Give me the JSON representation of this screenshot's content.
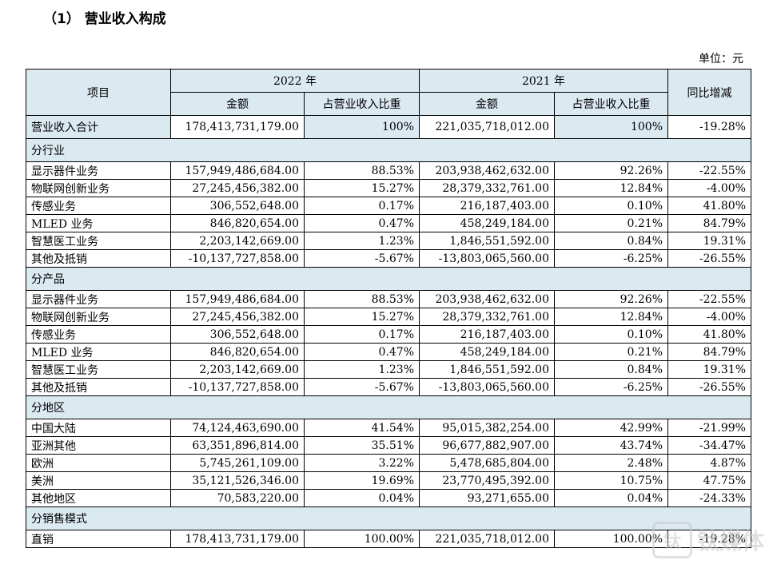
{
  "heading": "（1） 营业收入构成",
  "unit": "单位：元",
  "header": {
    "item": "项目",
    "year_a": "2022 年",
    "year_b": "2021 年",
    "yoy": "同比增减",
    "amount": "金额",
    "share": "占营业收入比重"
  },
  "total": {
    "label": "营业收入合计",
    "amt_a": "178,413,731,179.00",
    "pct_a": "100%",
    "amt_b": "221,035,718,012.00",
    "pct_b": "100%",
    "yoy": "-19.28%"
  },
  "sections": [
    {
      "title": "分行业",
      "rows": [
        {
          "label": "显示器件业务",
          "amt_a": "157,949,486,684.00",
          "pct_a": "88.53%",
          "amt_b": "203,938,462,632.00",
          "pct_b": "92.26%",
          "yoy": "-22.55%"
        },
        {
          "label": "物联网创新业务",
          "amt_a": "27,245,456,382.00",
          "pct_a": "15.27%",
          "amt_b": "28,379,332,761.00",
          "pct_b": "12.84%",
          "yoy": "-4.00%"
        },
        {
          "label": "传感业务",
          "amt_a": "306,552,648.00",
          "pct_a": "0.17%",
          "amt_b": "216,187,403.00",
          "pct_b": "0.10%",
          "yoy": "41.80%"
        },
        {
          "label": "MLED 业务",
          "amt_a": "846,820,654.00",
          "pct_a": "0.47%",
          "amt_b": "458,249,184.00",
          "pct_b": "0.21%",
          "yoy": "84.79%"
        },
        {
          "label": "智慧医工业务",
          "amt_a": "2,203,142,669.00",
          "pct_a": "1.23%",
          "amt_b": "1,846,551,592.00",
          "pct_b": "0.84%",
          "yoy": "19.31%"
        },
        {
          "label": "其他及抵销",
          "amt_a": "-10,137,727,858.00",
          "pct_a": "-5.67%",
          "amt_b": "-13,803,065,560.00",
          "pct_b": "-6.25%",
          "yoy": "-26.55%"
        }
      ]
    },
    {
      "title": "分产品",
      "rows": [
        {
          "label": "显示器件业务",
          "amt_a": "157,949,486,684.00",
          "pct_a": "88.53%",
          "amt_b": "203,938,462,632.00",
          "pct_b": "92.26%",
          "yoy": "-22.55%"
        },
        {
          "label": "物联网创新业务",
          "amt_a": "27,245,456,382.00",
          "pct_a": "15.27%",
          "amt_b": "28,379,332,761.00",
          "pct_b": "12.84%",
          "yoy": "-4.00%"
        },
        {
          "label": "传感业务",
          "amt_a": "306,552,648.00",
          "pct_a": "0.17%",
          "amt_b": "216,187,403.00",
          "pct_b": "0.10%",
          "yoy": "41.80%"
        },
        {
          "label": "MLED 业务",
          "amt_a": "846,820,654.00",
          "pct_a": "0.47%",
          "amt_b": "458,249,184.00",
          "pct_b": "0.21%",
          "yoy": "84.79%"
        },
        {
          "label": "智慧医工业务",
          "amt_a": "2,203,142,669.00",
          "pct_a": "1.23%",
          "amt_b": "1,846,551,592.00",
          "pct_b": "0.84%",
          "yoy": "19.31%"
        },
        {
          "label": "其他及抵销",
          "amt_a": "-10,137,727,858.00",
          "pct_a": "-5.67%",
          "amt_b": "-13,803,065,560.00",
          "pct_b": "-6.25%",
          "yoy": "-26.55%"
        }
      ]
    },
    {
      "title": "分地区",
      "rows": [
        {
          "label": "中国大陆",
          "amt_a": "74,124,463,690.00",
          "pct_a": "41.54%",
          "amt_b": "95,015,382,254.00",
          "pct_b": "42.99%",
          "yoy": "-21.99%"
        },
        {
          "label": "亚洲其他",
          "amt_a": "63,351,896,814.00",
          "pct_a": "35.51%",
          "amt_b": "96,677,882,907.00",
          "pct_b": "43.74%",
          "yoy": "-34.47%"
        },
        {
          "label": "欧洲",
          "amt_a": "5,745,261,109.00",
          "pct_a": "3.22%",
          "amt_b": "5,478,685,804.00",
          "pct_b": "2.48%",
          "yoy": "4.87%"
        },
        {
          "label": "美洲",
          "amt_a": "35,121,526,346.00",
          "pct_a": "19.69%",
          "amt_b": "23,770,495,392.00",
          "pct_b": "10.75%",
          "yoy": "47.75%"
        },
        {
          "label": "其他地区",
          "amt_a": "70,583,220.00",
          "pct_a": "0.04%",
          "amt_b": "93,271,655.00",
          "pct_b": "0.04%",
          "yoy": "-24.33%"
        }
      ]
    },
    {
      "title": "分销售模式",
      "rows": [
        {
          "label": "直销",
          "amt_a": "178,413,731,179.00",
          "pct_a": "100.00%",
          "amt_b": "221,035,718,012.00",
          "pct_b": "100.00%",
          "yoy": "-19.28%"
        }
      ]
    }
  ],
  "watermark": {
    "logo": "钛",
    "text": "钛媒体"
  },
  "colors": {
    "header_bg": "#dbe9f1",
    "border": "#000000"
  }
}
